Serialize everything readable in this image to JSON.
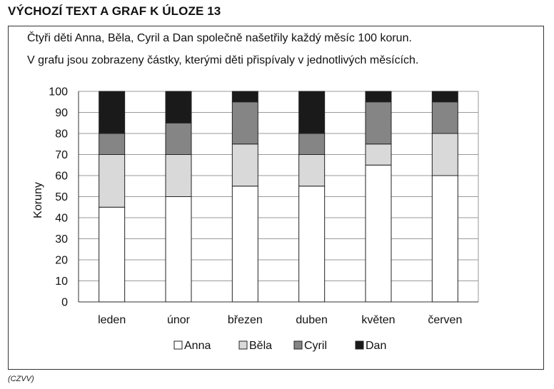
{
  "heading": "VÝCHOZÍ TEXT A GRAF K ÚLOZE 13",
  "intro": {
    "line1": "Čtyři děti Anna, Běla, Cyril a Dan společně našetřily každý měsíc 100 korun.",
    "line2": "V grafu jsou zobrazeny částky, kterými děti přispívaly v jednotlivých měsících."
  },
  "source": "(CZVV)",
  "chart_data": {
    "type": "bar",
    "stacked": true,
    "title": "",
    "xlabel": "",
    "ylabel": "Koruny",
    "ylim": [
      0,
      100
    ],
    "yticks": [
      0,
      10,
      20,
      30,
      40,
      50,
      60,
      70,
      80,
      90,
      100
    ],
    "grid": true,
    "legend_position": "bottom",
    "categories": [
      "leden",
      "únor",
      "březen",
      "duben",
      "květen",
      "červen"
    ],
    "series": [
      {
        "name": "Anna",
        "color": "#ffffff",
        "values": [
          45,
          50,
          55,
          55,
          65,
          60
        ]
      },
      {
        "name": "Běla",
        "color": "#d9d9d9",
        "values": [
          25,
          20,
          20,
          15,
          10,
          20
        ]
      },
      {
        "name": "Cyril",
        "color": "#858585",
        "values": [
          10,
          15,
          20,
          10,
          20,
          15
        ]
      },
      {
        "name": "Dan",
        "color": "#1a1a1a",
        "values": [
          20,
          15,
          5,
          20,
          5,
          5
        ]
      }
    ]
  }
}
